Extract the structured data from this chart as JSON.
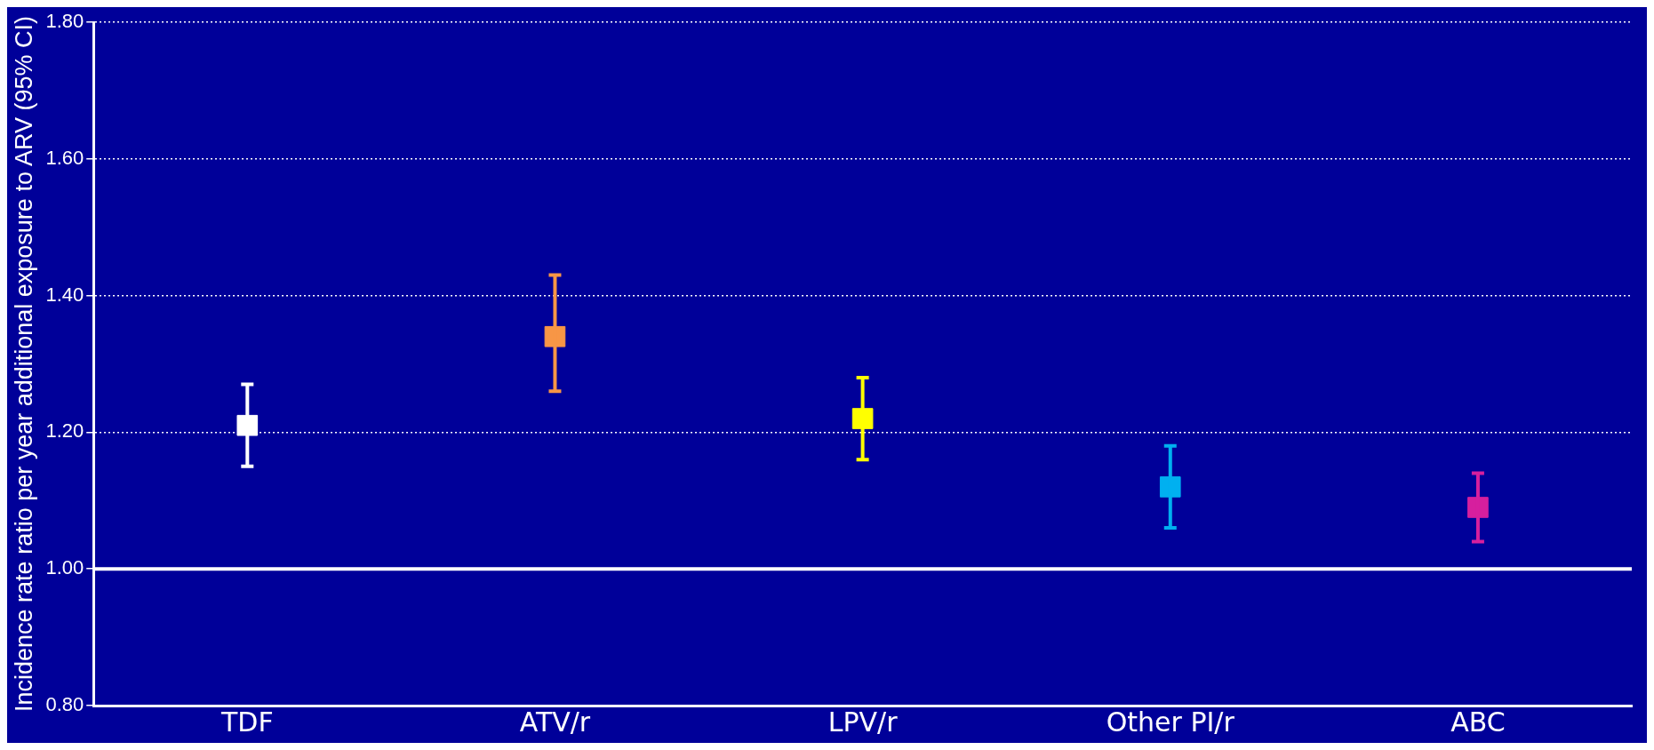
{
  "chart_data": {
    "type": "scatter",
    "ylabel": "Incidence rate ratio per year additional exposure to ARV (95% CI)",
    "categories": [
      "TDF",
      "ATV/r",
      "LPV/r",
      "Other PI/r",
      "ABC"
    ],
    "values": [
      1.21,
      1.34,
      1.22,
      1.12,
      1.09
    ],
    "colors": [
      "#ffffff",
      "#f79646",
      "#ffff00",
      "#00b0f0",
      "#d61f9e"
    ],
    "errors": [
      [
        1.15,
        1.27
      ],
      [
        1.26,
        1.43
      ],
      [
        1.16,
        1.28
      ],
      [
        1.06,
        1.18
      ],
      [
        1.04,
        1.14
      ]
    ],
    "marker": "square",
    "ylim": [
      0.8,
      1.8
    ],
    "yticks": [
      {
        "value": 0.8,
        "label": "0.80"
      },
      {
        "value": 1.0,
        "label": "1.00"
      },
      {
        "value": 1.2,
        "label": "1.20"
      },
      {
        "value": 1.4,
        "label": "1.40"
      },
      {
        "value": 1.6,
        "label": "1.60"
      },
      {
        "value": 1.8,
        "label": "1.80"
      }
    ],
    "grid": "y",
    "ref_lines": [
      {
        "axis": "y",
        "value": 1.0,
        "color": "#ffffff",
        "line_style": "solid"
      }
    ],
    "legend": false
  }
}
